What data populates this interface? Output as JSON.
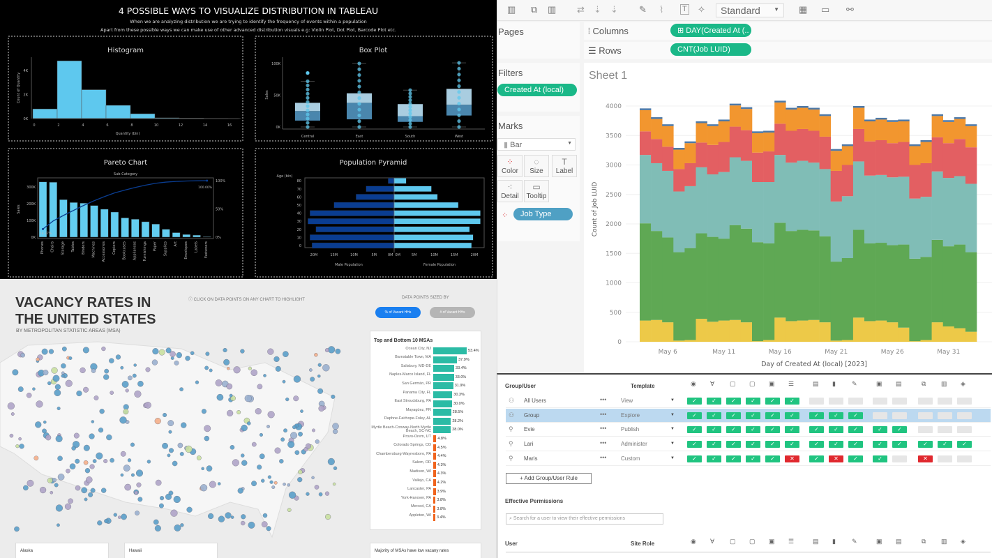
{
  "distribution": {
    "title": "4 POSSIBLE WAYS TO VISUALIZE DISTRIBUTION IN TABLEAU",
    "subtitle1": "When we are analyzing distribution we are trying to identify the frequency of events within a population",
    "subtitle2": "Apart from these possible ways we can make use of other advanced distribution visuals e.g: Violin Plot, Dot Plot, Barcode Plot etc."
  },
  "chart_data": [
    {
      "id": "histogram",
      "type": "bar",
      "title": "Histogram",
      "xlabel": "Quantity (bin)",
      "ylabel": "Count of Quantity",
      "bins": [
        0,
        2,
        4,
        6,
        8,
        10,
        12,
        14,
        16
      ],
      "values": [
        800,
        4800,
        2400,
        1100,
        400,
        60,
        40,
        20,
        10
      ],
      "x_ticks": [
        "0",
        "2",
        "4",
        "6",
        "8",
        "10",
        "12",
        "14",
        "16"
      ],
      "y_ticks": [
        "0K",
        "2K",
        "4K"
      ],
      "ylim": [
        0,
        5000
      ],
      "color": "#5ec8ee"
    },
    {
      "id": "box-plot",
      "type": "box",
      "title": "Box Plot",
      "ylabel": "Sales",
      "categories": [
        "Central",
        "East",
        "South",
        "West"
      ],
      "boxes": [
        {
          "min": 0,
          "q1": 10000,
          "median": 25000,
          "q3": 38000,
          "max": 72000,
          "outliers": [
            85000
          ]
        },
        {
          "min": 0,
          "q1": 12000,
          "median": 38000,
          "q3": 53000,
          "max": 100000,
          "outliers": []
        },
        {
          "min": 0,
          "q1": 8000,
          "median": 17000,
          "q3": 36000,
          "max": 58000,
          "outliers": []
        },
        {
          "min": 0,
          "q1": 18000,
          "median": 35000,
          "q3": 60000,
          "max": 101000,
          "outliers": []
        }
      ],
      "y_ticks": [
        "0K",
        "50K",
        "100K"
      ],
      "ylim": [
        0,
        105000
      ]
    },
    {
      "id": "pareto",
      "type": "bar",
      "title": "Pareto Chart",
      "subtitle": "Sub-Category",
      "ylabel": "Sales",
      "categories": [
        "Phones",
        "Chairs",
        "Storage",
        "Tables",
        "Binders",
        "Machines",
        "Accessories",
        "Copiers",
        "Bookcases",
        "Appliances",
        "Furnishings",
        "Paper",
        "Supplies",
        "Art",
        "Envelopes",
        "Labels",
        "Fasteners"
      ],
      "values": [
        330000,
        328000,
        224000,
        207000,
        203000,
        189000,
        167000,
        150000,
        115000,
        107000,
        92000,
        78000,
        47000,
        27000,
        16000,
        12000,
        3000
      ],
      "y_ticks": [
        "0K",
        "100K",
        "200K",
        "300K"
      ],
      "y2_ticks": [
        "0%",
        "50%",
        "100%"
      ],
      "first_label": "14.37%",
      "last_label": "100.00%",
      "ylim": [
        0,
        340000
      ]
    },
    {
      "id": "population-pyramid",
      "type": "bar",
      "title": "Population Pyramid",
      "ylabel": "Age (bin)",
      "categories": [
        "0",
        "10",
        "20",
        "30",
        "40",
        "50",
        "60",
        "70",
        "80"
      ],
      "series": [
        {
          "name": "Male Population",
          "values": [
            20.5,
            21,
            19.5,
            21.5,
            21,
            15,
            9.5,
            7,
            1.5
          ],
          "color": "#0a3d91"
        },
        {
          "name": "Female Population",
          "values": [
            19.3,
            19.7,
            18.8,
            21.5,
            21.5,
            16,
            10.8,
            9.3,
            3
          ],
          "color": "#5ec8ee"
        }
      ],
      "x_ticks_left": [
        "20M",
        "15M",
        "10M",
        "5M",
        "0M"
      ],
      "x_ticks_right": [
        "0M",
        "5M",
        "10M",
        "15M",
        "20M"
      ],
      "unit": "M"
    },
    {
      "id": "job-stacked-bar",
      "type": "bar",
      "stacked": true,
      "title": "Sheet 1",
      "xlabel": "Day of Created At (local) [2023]",
      "ylabel": "Count of Job LUID",
      "x": [
        "2023-05-04",
        "2023-05-05",
        "2023-05-06",
        "2023-05-07",
        "2023-05-08",
        "2023-05-09",
        "2023-05-10",
        "2023-05-11",
        "2023-05-12",
        "2023-05-13",
        "2023-05-14",
        "2023-05-15",
        "2023-05-16",
        "2023-05-17",
        "2023-05-18",
        "2023-05-19",
        "2023-05-20",
        "2023-05-21",
        "2023-05-22",
        "2023-05-23",
        "2023-05-24",
        "2023-05-25",
        "2023-05-26",
        "2023-05-27",
        "2023-05-28",
        "2023-05-29",
        "2023-05-30",
        "2023-05-31",
        "2023-06-01",
        "2023-06-02"
      ],
      "x_ticks": [
        "May 6",
        "May 11",
        "May 16",
        "May 21",
        "May 26",
        "May 31"
      ],
      "y_ticks": [
        "0",
        "500",
        "1000",
        "1500",
        "2000",
        "2500",
        "3000",
        "3500",
        "4000"
      ],
      "ylim": [
        0,
        4200
      ],
      "series": [
        {
          "color": "#edc948",
          "values": [
            360,
            370,
            330,
            20,
            30,
            390,
            340,
            360,
            370,
            330,
            10,
            30,
            410,
            350,
            360,
            370,
            330,
            20,
            30,
            410,
            350,
            360,
            330,
            240,
            10,
            30,
            330,
            260,
            230,
            170
          ]
        },
        {
          "color": "#5fa854",
          "values": [
            1650,
            1510,
            1440,
            1500,
            1560,
            1450,
            1440,
            1390,
            1610,
            1590,
            1680,
            1640,
            1610,
            1530,
            1540,
            1520,
            1460,
            1340,
            1390,
            1490,
            1320,
            1320,
            1310,
            1410,
            1400,
            1410,
            1400,
            1360,
            1420,
            1350
          ]
        },
        {
          "color": "#80bdb6",
          "values": [
            1160,
            1150,
            1130,
            1030,
            1050,
            1120,
            1060,
            1130,
            1150,
            1150,
            1020,
            1040,
            1150,
            1160,
            1170,
            1150,
            1140,
            1020,
            1050,
            1160,
            1150,
            1150,
            1150,
            1150,
            1020,
            1020,
            1160,
            1160,
            1160,
            1160
          ]
        },
        {
          "color": "#e35f62",
          "values": [
            400,
            410,
            410,
            380,
            390,
            420,
            500,
            510,
            520,
            520,
            500,
            520,
            530,
            540,
            540,
            540,
            550,
            520,
            530,
            550,
            580,
            590,
            580,
            590,
            570,
            570,
            580,
            590,
            630,
            620
          ]
        },
        {
          "color": "#f2962f",
          "values": [
            360,
            340,
            350,
            330,
            340,
            330,
            320,
            350,
            360,
            360,
            330,
            320,
            360,
            360,
            360,
            360,
            350,
            340,
            320,
            360,
            340,
            350,
            360,
            350,
            320,
            360,
            360,
            360,
            340,
            360
          ]
        },
        {
          "color": "#4e79a7",
          "values": [
            30,
            30,
            30,
            30,
            30,
            30,
            30,
            30,
            30,
            30,
            30,
            30,
            30,
            30,
            30,
            30,
            30,
            30,
            30,
            30,
            30,
            30,
            30,
            30,
            30,
            30,
            30,
            30,
            30,
            30
          ]
        }
      ]
    },
    {
      "id": "top-bottom-msa",
      "type": "bar",
      "title": "Top and Bottom 10 MSAs",
      "categories": [
        "Ocean City, NJ",
        "Barnstable Town, MA",
        "Salisbury, MD-DE",
        "Naples-Marco Island, FL",
        "San Germán, PR",
        "Panama City, FL",
        "East Stroudsburg, PA",
        "Mayagüez, PR",
        "Daphne-Fairhope-Foley, AL",
        "Myrtle Beach-Conway-North Myrtle Beach, SC-NC",
        "Provo-Orem, UT",
        "Colorado Springs, CO",
        "Chambersburg-Waynesboro, PA",
        "Salem, OR",
        "Madison, WI",
        "Vallejo, CA",
        "Lancaster, PA",
        "York-Hanover, PA",
        "Merced, CA",
        "Appleton, WI"
      ],
      "values": [
        53.4,
        37.9,
        33.4,
        33.0,
        31.9,
        30.3,
        30.0,
        28.5,
        28.2,
        28.0,
        4.8,
        4.5,
        4.4,
        4.3,
        4.3,
        4.2,
        3.9,
        3.8,
        3.8,
        3.4
      ],
      "labels": [
        "53.4%",
        "37.9%",
        "33.4%",
        "33.0%",
        "31.9%",
        "30.3%",
        "30.0%",
        "28.5%",
        "28.2%",
        "28.0%",
        "4.8%",
        "4.5%",
        "4.4%",
        "4.3%",
        "4.3%",
        "4.2%",
        "3.9%",
        "3.8%",
        "3.8%",
        "3.4%"
      ],
      "colors": {
        "top": "#2bbba5",
        "bottom": "#f0641e"
      }
    }
  ],
  "map": {
    "title_line1": "VACANCY RATES IN",
    "title_line2": "THE UNITED STATES",
    "subtitle": "BY METROPOLITAN STATISTIC AREAS (MSA)",
    "hint": "ⓘ CLICK ON DATA POINTS ON ANY CHART TO HIGHLIGHT",
    "sized_by_label": "DATA POINTS SIZED BY",
    "toggle_active": "% of Vacant HHs",
    "toggle_inactive": "# of Vacant HHs",
    "inset_alaska": "Alaska",
    "inset_hawaii": "Hawaii",
    "footer_note": "Majority of MSAs have low vacany rates"
  },
  "tableau": {
    "toolbar_standard": "Standard",
    "pages": "Pages",
    "columns": "Columns",
    "rows": "Rows",
    "columns_pill": "⊞ DAY(Created At (..",
    "rows_pill": "CNT(Job LUID)",
    "filters": "Filters",
    "filter_pill": "Created At (local)",
    "marks": "Marks",
    "mark_type": "Bar",
    "mark_buttons": [
      "Color",
      "Size",
      "Label",
      "Detail",
      "Tooltip"
    ],
    "color_pill": "Job Type",
    "sheet_title": "Sheet 1"
  },
  "permissions": {
    "header_group": "Group/User",
    "header_template": "Template",
    "rows": [
      {
        "name": "All Users",
        "template": "View",
        "type": "group",
        "states": [
          "c",
          "c",
          "c",
          "c",
          "c",
          "c",
          "e",
          "e",
          "e",
          "e",
          "e",
          "e",
          "e",
          "e"
        ]
      },
      {
        "name": "Group",
        "template": "Explore",
        "type": "group",
        "selected": true,
        "states": [
          "c",
          "c",
          "c",
          "c",
          "c",
          "c",
          "c",
          "c",
          "c",
          "e",
          "e",
          "e",
          "e",
          "e"
        ]
      },
      {
        "name": "Evie",
        "template": "Publish",
        "type": "user",
        "states": [
          "c",
          "c",
          "c",
          "c",
          "c",
          "c",
          "c",
          "c",
          "c",
          "c",
          "c",
          "e",
          "e",
          "e"
        ]
      },
      {
        "name": "Lari",
        "template": "Administer",
        "type": "user",
        "states": [
          "c",
          "c",
          "c",
          "c",
          "c",
          "c",
          "c",
          "c",
          "c",
          "c",
          "c",
          "c",
          "c",
          "c"
        ]
      },
      {
        "name": "Maris",
        "template": "Custom",
        "type": "user",
        "states": [
          "c",
          "c",
          "c",
          "c",
          "c",
          "x",
          "c",
          "x",
          "c",
          "c",
          "e",
          "x",
          "e",
          "e"
        ]
      }
    ],
    "add_rule": "+ Add Group/User Rule",
    "effective_title": "Effective Permissions",
    "search_placeholder": "Search for a user to view their effective permissions",
    "header_user": "User",
    "header_site_role": "Site Role",
    "capability_icons": [
      "view",
      "filter",
      "comments",
      "add-comment",
      "download-image",
      "download-summary",
      "download-full",
      "download-data",
      "web-edit",
      "download-workbook",
      "overwrite",
      "move",
      "delete",
      "set-permissions"
    ]
  }
}
